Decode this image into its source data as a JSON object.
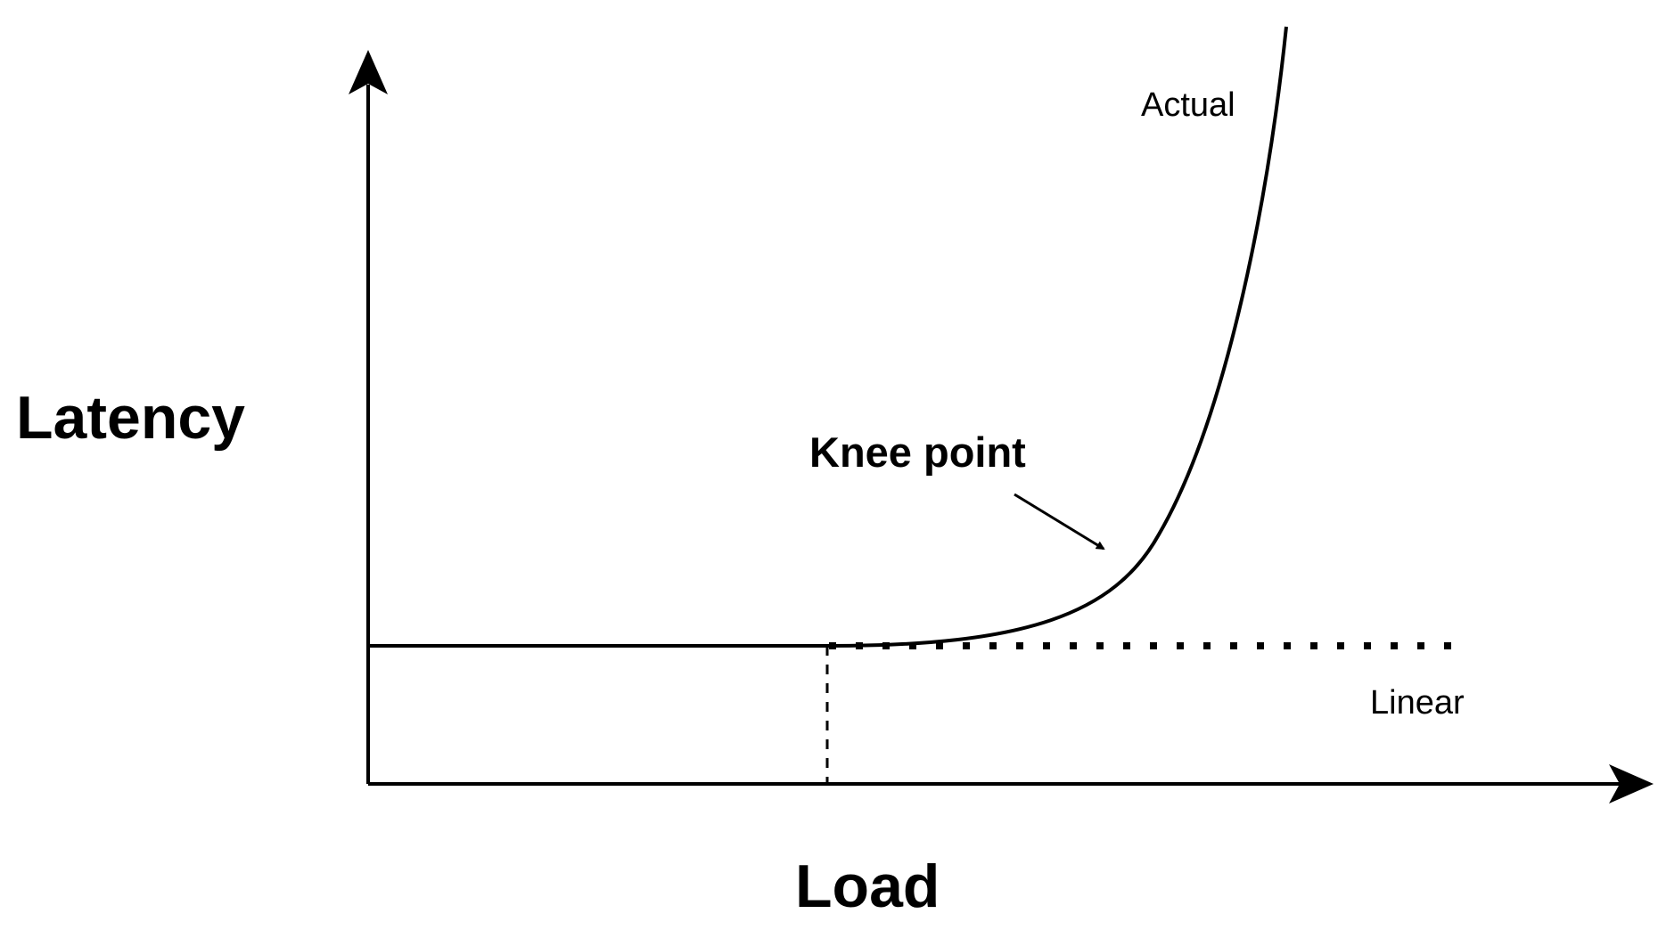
{
  "diagram": {
    "y_axis_label": "Latency",
    "x_axis_label": "Load",
    "annotation": "Knee point",
    "curves": [
      {
        "name": "Actual",
        "style": "solid"
      },
      {
        "name": "Linear",
        "style": "dotted"
      }
    ],
    "colors": {
      "background": "#ffffff",
      "ink": "#000000"
    }
  }
}
